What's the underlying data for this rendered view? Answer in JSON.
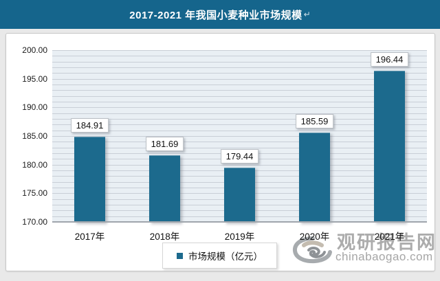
{
  "header": {
    "title": "2017-2021 年我国小麦种业市场规模",
    "title_mark": "↵",
    "background": "#15658C",
    "text_color": "#FFFFFF"
  },
  "chart_data": {
    "type": "bar",
    "title": "2017-2021 年我国小麦种业市场规模",
    "categories": [
      "2017年",
      "2018年",
      "2019年",
      "2020年",
      "2021年"
    ],
    "series": [
      {
        "name": "市场规模（亿元）",
        "values": [
          184.91,
          181.69,
          179.44,
          185.59,
          196.44
        ]
      }
    ],
    "value_labels": [
      "184.91",
      "181.69",
      "179.44",
      "185.59",
      "196.44"
    ],
    "xlabel": "",
    "ylabel": "",
    "ylim": [
      170,
      200
    ],
    "y_tick_step": 5,
    "y_minor_step": 1,
    "y_tick_labels": [
      "170.00",
      "175.00",
      "180.00",
      "185.00",
      "190.00",
      "195.00",
      "200.00"
    ],
    "grid": true,
    "legend_position": "bottom",
    "colors": {
      "bar": "#1C6A8D",
      "plot_background": "#E9EFF4",
      "gridline": "#C8CED6",
      "axis": "#9FA5AC"
    }
  },
  "legend": {
    "label": "市场规模（亿元）",
    "marker_color": "#1C6A8D"
  },
  "watermark": {
    "logo": "eye-swirl-logo",
    "name": "观研报告网",
    "domain": "chinabaogao.com"
  }
}
